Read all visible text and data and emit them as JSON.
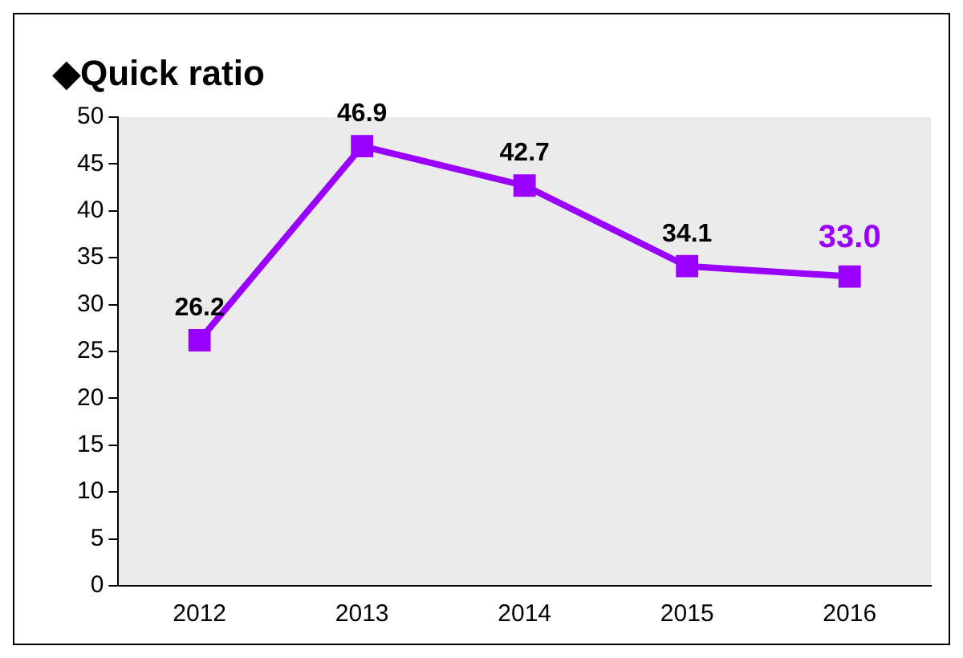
{
  "chart_data": {
    "type": "line",
    "title": "◆Quick ratio",
    "categories": [
      "2012",
      "2013",
      "2014",
      "2015",
      "2016"
    ],
    "series": [
      {
        "color": "#9900ff",
        "values": [
          26.2,
          46.9,
          42.7,
          34.1,
          33.0
        ],
        "value_labels": [
          "26.2",
          "46.9",
          "42.7",
          "34.1",
          "33.0"
        ]
      }
    ],
    "ylim": [
      0,
      50
    ],
    "yticks": [
      0,
      5,
      10,
      15,
      20,
      25,
      30,
      35,
      40,
      45,
      50
    ],
    "grid": false,
    "legend": false,
    "marker": "square",
    "line_style": "solid"
  }
}
